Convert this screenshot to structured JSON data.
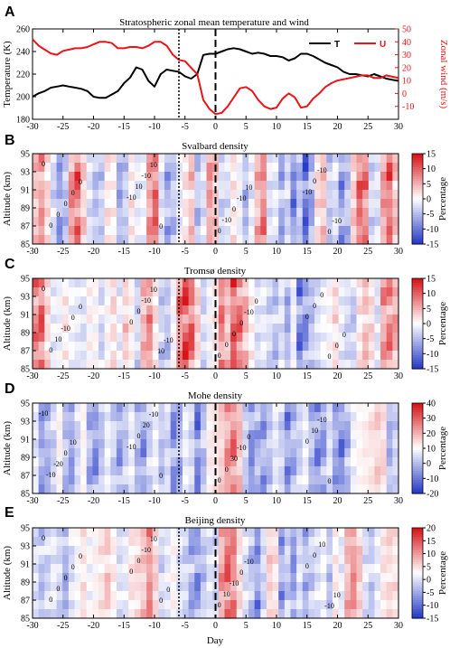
{
  "figure": {
    "panel_letters": [
      "A",
      "B",
      "C",
      "D",
      "E"
    ],
    "xlabel": "Day",
    "x_ticks": [
      -30,
      -25,
      -20,
      -15,
      -10,
      -5,
      0,
      5,
      10,
      15,
      20,
      25,
      30
    ],
    "xlim": [
      -30,
      30
    ],
    "markers": {
      "dotted_day": -6,
      "dashed_day": 0
    }
  },
  "chart_data": [
    {
      "panel": "A",
      "type": "line",
      "title": "Stratospheric zonal mean temperature and wind",
      "ylabel_left": "Temperature (K)",
      "ylabel_right": "Zonal wind (m/s)",
      "ylim_left": [
        180,
        260
      ],
      "yticks_left": [
        180,
        200,
        220,
        240,
        260
      ],
      "ylim_right": [
        -20,
        50
      ],
      "yticks_right": [
        -10,
        0,
        10,
        20,
        30,
        40,
        50
      ],
      "legend": [
        "T",
        "U"
      ],
      "colors": {
        "T": "#000000",
        "U": "#e8141a"
      },
      "x": [
        -30,
        -29,
        -28,
        -27,
        -26,
        -25,
        -24,
        -23,
        -22,
        -21,
        -20,
        -19,
        -18,
        -17,
        -16,
        -15,
        -14,
        -13,
        -12,
        -11,
        -10,
        -9,
        -8,
        -7,
        -6,
        -5,
        -4,
        -3,
        -2,
        -1,
        0,
        1,
        2,
        3,
        4,
        5,
        6,
        7,
        8,
        9,
        10,
        11,
        12,
        13,
        14,
        15,
        16,
        17,
        18,
        19,
        20,
        21,
        22,
        23,
        24,
        25,
        26,
        27,
        28,
        29,
        30
      ],
      "series": [
        {
          "name": "T",
          "axis": "left",
          "values": [
            200,
            203,
            205,
            208,
            209,
            210,
            209,
            208,
            207,
            205,
            200,
            199,
            199,
            202,
            205,
            212,
            217,
            226,
            224,
            214,
            209,
            220,
            224,
            223,
            222,
            218,
            216,
            220,
            237,
            238,
            238,
            240,
            242,
            243,
            242,
            240,
            238,
            239,
            238,
            236,
            236,
            235,
            232,
            234,
            238,
            238,
            236,
            233,
            230,
            228,
            226,
            222,
            220,
            220,
            219,
            218,
            220,
            218,
            216,
            215,
            214
          ]
        },
        {
          "name": "U",
          "axis": "right",
          "values": [
            42,
            37,
            34,
            31,
            30,
            33,
            34,
            35,
            35,
            36,
            38,
            40,
            40,
            39,
            35,
            35,
            36,
            36,
            35,
            37,
            40,
            40,
            37,
            30,
            26,
            25,
            20,
            15,
            -5,
            -12,
            -16,
            -15,
            -10,
            -3,
            4,
            5,
            2,
            -5,
            -10,
            -12,
            -11,
            -4,
            0,
            -3,
            -11,
            -10,
            -4,
            0,
            5,
            8,
            10,
            11,
            12,
            13,
            14,
            14,
            12,
            12,
            14,
            13,
            12
          ]
        }
      ]
    },
    {
      "panel": "B",
      "type": "heatmap",
      "title": "Svalbard density",
      "ylabel": "Altitude (km)",
      "yticks": [
        85,
        87,
        89,
        91,
        93,
        95
      ],
      "ylim": [
        85,
        95
      ],
      "colorbar_label": "Percentage",
      "colorbar_ticks": [
        15,
        10,
        5,
        0,
        -5,
        -10,
        -15
      ],
      "clim": [
        -15,
        15
      ],
      "contour_labels": [
        "0",
        "-10",
        "0",
        "-10",
        "0",
        "10",
        "-10",
        "0",
        "0",
        "-10",
        "0",
        "-10",
        "0",
        "10",
        "-10",
        "0",
        "0",
        "0",
        "10",
        "-10",
        "0"
      ],
      "day_profile": [
        5,
        8,
        3,
        -4,
        -9,
        -6,
        9,
        12,
        4,
        -3,
        -6,
        -5,
        2,
        1,
        -8,
        -5,
        2,
        -2,
        -1,
        8,
        12,
        -3,
        -8,
        -6,
        -2,
        2,
        5,
        -6,
        -3,
        8,
        5,
        -4,
        -3,
        2,
        -1,
        -7,
        -2,
        6,
        10,
        -3,
        -2,
        -8,
        -4,
        -12,
        -6,
        -14,
        -8,
        3,
        5,
        -5,
        -3,
        -10,
        -6,
        4,
        12,
        10,
        -4,
        -3,
        8,
        12,
        5
      ]
    },
    {
      "panel": "C",
      "type": "heatmap",
      "title": "Tromsø density",
      "ylabel": "Altitude (km)",
      "yticks": [
        85,
        87,
        89,
        91,
        93,
        95
      ],
      "ylim": [
        85,
        95
      ],
      "colorbar_label": "Percentage",
      "colorbar_ticks": [
        15,
        10,
        5,
        0,
        -5,
        -10,
        -15
      ],
      "clim": [
        -15,
        15
      ],
      "contour_labels": [
        "0",
        "0",
        "0",
        "0",
        "0",
        "0",
        "0",
        "0",
        "10",
        "-10",
        "0",
        "0",
        "-10",
        "10",
        "0",
        "0",
        "0",
        "10",
        "-10",
        "0",
        "0",
        "-10",
        "0",
        "0"
      ],
      "day_profile": [
        10,
        12,
        3,
        -2,
        -1,
        2,
        -1,
        -2,
        -3,
        1,
        0,
        -4,
        0,
        3,
        -2,
        4,
        1,
        -4,
        6,
        9,
        2,
        -5,
        -6,
        0,
        10,
        14,
        12,
        4,
        -4,
        -1,
        2,
        10,
        5,
        13,
        11,
        6,
        1,
        -3,
        -2,
        -4,
        -6,
        -3,
        -8,
        -1,
        -12,
        -10,
        -6,
        -3,
        -1,
        0,
        3,
        -2,
        -4,
        -5,
        2,
        5,
        3,
        -3,
        8,
        10,
        7
      ]
    },
    {
      "panel": "D",
      "type": "heatmap",
      "title": "Mohe density",
      "ylabel": "Altitude (km)",
      "yticks": [
        85,
        87,
        89,
        91,
        93,
        95
      ],
      "ylim": [
        85,
        95
      ],
      "colorbar_label": "Percentage",
      "colorbar_ticks": [
        40,
        30,
        20,
        10,
        0,
        -10,
        -20
      ],
      "clim": [
        -20,
        40
      ],
      "contour_labels": [
        "-10",
        "-10",
        "0",
        "0",
        "-10",
        "0",
        "0",
        "10",
        "-20",
        "20",
        "30",
        "-10",
        "0",
        "-10",
        "-10",
        "0",
        "10",
        "0",
        "0"
      ],
      "day_profile": [
        -3,
        -12,
        -10,
        -6,
        3,
        -8,
        -12,
        -5,
        2,
        -10,
        -14,
        -8,
        -2,
        -6,
        -12,
        -7,
        -2,
        -9,
        -13,
        -6,
        -2,
        -8,
        -5,
        -14,
        -10,
        -2,
        -5,
        -16,
        -8,
        4,
        6,
        10,
        22,
        28,
        14,
        -6,
        -14,
        -10,
        -12,
        -8,
        -3,
        -6,
        -14,
        -10,
        -6,
        -2,
        -9,
        -14,
        -12,
        -4,
        -12,
        -16,
        -10,
        -2,
        2,
        4,
        6,
        10,
        8,
        -10,
        -6
      ]
    },
    {
      "panel": "E",
      "type": "heatmap",
      "title": "Beijing density",
      "ylabel": "Altitude (km)",
      "yticks": [
        85,
        87,
        89,
        91,
        93,
        95
      ],
      "ylim": [
        85,
        95
      ],
      "colorbar_label": "Percentage",
      "colorbar_ticks": [
        20,
        15,
        10,
        5,
        0,
        -5,
        -10,
        -15
      ],
      "clim": [
        -15,
        20
      ],
      "contour_labels": [
        "0",
        "0",
        "0",
        "0",
        "0",
        "0",
        "10",
        "0",
        "0",
        "-10",
        "-10",
        "10",
        "0",
        "10",
        "0",
        "-10",
        "0",
        "0",
        "-10",
        "10",
        "0",
        "0"
      ],
      "day_profile": [
        -3,
        -6,
        -4,
        -2,
        -4,
        -8,
        -3,
        0,
        3,
        -1,
        1,
        3,
        6,
        2,
        -3,
        -2,
        3,
        4,
        6,
        12,
        5,
        -4,
        -2,
        1,
        -3,
        -4,
        -8,
        -10,
        -6,
        -3,
        -4,
        10,
        16,
        13,
        4,
        -3,
        -6,
        -10,
        -4,
        5,
        3,
        -9,
        -5,
        -10,
        -3,
        -7,
        -5,
        -3,
        -1,
        -6,
        2,
        -2,
        8,
        12,
        6,
        -3,
        -5,
        -2,
        3,
        4,
        3
      ]
    }
  ]
}
